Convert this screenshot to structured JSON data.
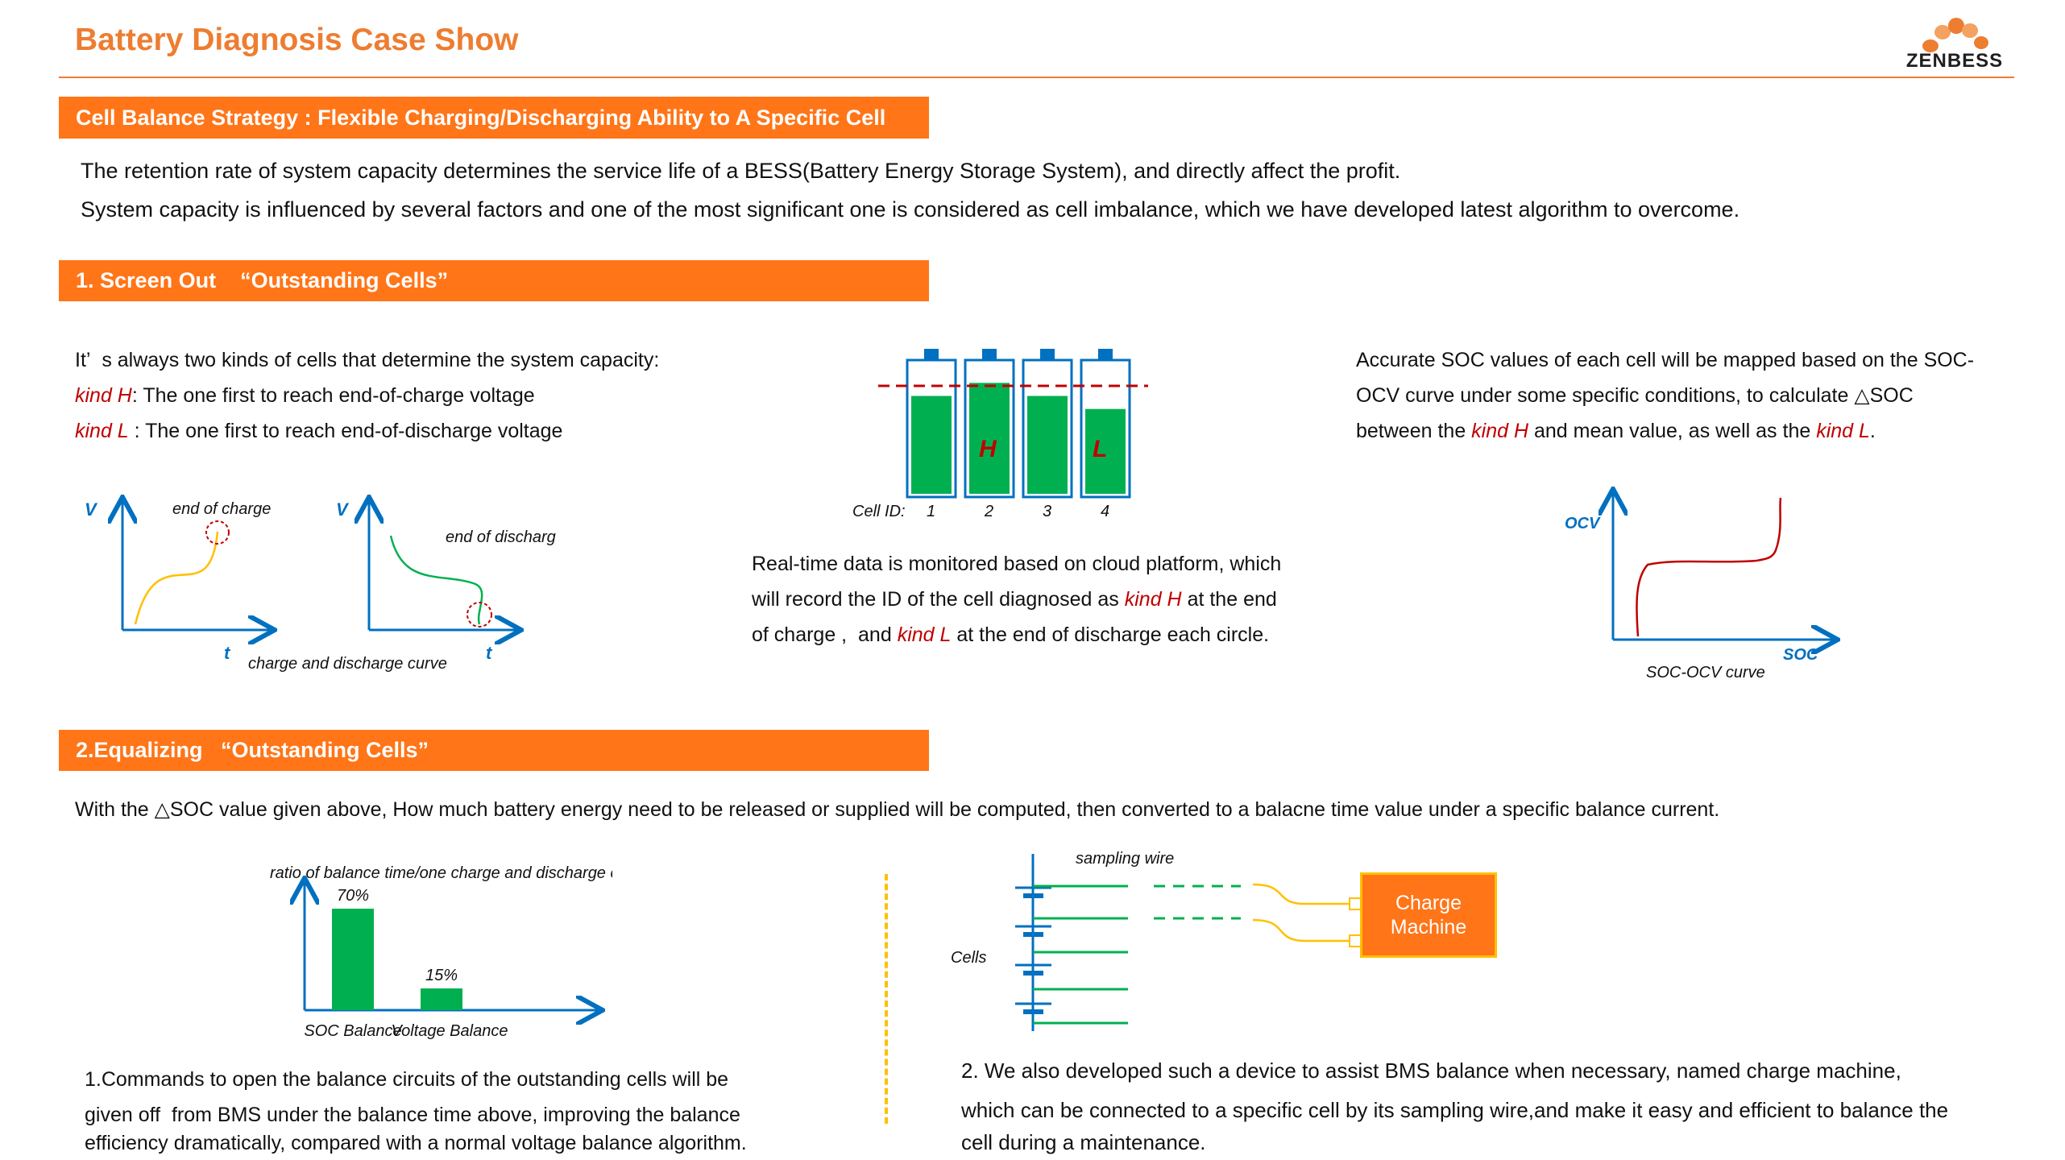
{
  "header": {
    "title": "Battery Diagnosis Case Show",
    "logo_text": "ZENBESS",
    "accent_color": "#ED7D31",
    "bar_color": "#FF7518"
  },
  "strategy": {
    "bar_label": "Cell Balance Strategy : Flexible Charging/Discharging Ability to A Specific Cell",
    "line1": "The retention rate of system capacity determines the service life of a BESS(Battery Energy Storage System), and directly affect the profit.",
    "line2": "System capacity is influenced by several factors and one of the most significant one is considered as cell imbalance, which we have developed latest algorithm to overcome."
  },
  "section1": {
    "bar_label": "1. Screen Out    “Outstanding Cells”",
    "left": {
      "intro": "It’  s always two kinds of cells that determine the system capacity:",
      "kind_h": "kind H",
      "kind_h_desc": ": The one first to reach end-of-charge voltage",
      "kind_l": "kind L",
      "kind_l_desc": " : The one first to reach end-of-discharge voltage"
    },
    "curves": {
      "v_label": "V",
      "t_label": "t",
      "end_of_charge": "end of charge",
      "end_of_discharge": "end of discharge",
      "caption": "charge and discharge curve"
    },
    "cells": {
      "cell_id_label": "Cell ID:",
      "ids": [
        "1",
        "2",
        "3",
        "4"
      ],
      "h_label": "H",
      "l_label": "L",
      "fill_levels": [
        0.75,
        0.85,
        0.75,
        0.65
      ]
    },
    "middle_text": {
      "l1_a": "Real-time data is monitored based on cloud platform, which",
      "l2_a": "will record the ID of the cell diagnosed as ",
      "l2_red": "kind H",
      "l2_b": " at the end",
      "l3_a": "of charge ,  and ",
      "l3_red": "kind L",
      "l3_b": " at the end of discharge each circle."
    },
    "right_text": {
      "l1": "Accurate SOC values of each cell will be mapped based on the SOC-",
      "l2": "OCV curve under some specific conditions, to calculate △SOC",
      "l3_a": "between the ",
      "l3_red1": "kind H",
      "l3_b": " and mean value, as well as the ",
      "l3_red2": "kind L",
      "l3_c": "."
    },
    "socv": {
      "y_label": "OCV",
      "x_label": "SOC",
      "caption": "SOC-OCV curve"
    }
  },
  "section2": {
    "bar_label": "2.Equalizing   “Outstanding Cells”",
    "intro": "With the △SOC value given above, How much battery energy need to be released or supplied will be computed, then converted to a balacne time value under a specific balance current.",
    "left_text": {
      "l1": "1.Commands to open the balance circuits of the outstanding cells will be",
      "l2": "given off  from BMS under the balance time above, improving the balance",
      "l3": "efficiency dramatically, compared with a normal voltage balance algorithm."
    },
    "right_text": {
      "l1": "2. We also developed such a device to assist BMS balance when necessary, named charge machine,",
      "l2": "which can be connected to a specific cell by its sampling wire,and make it easy and efficient to balance the",
      "l3": "cell during a maintenance."
    },
    "device": {
      "sampling_wire": "sampling wire",
      "cells_label": "Cells",
      "machine_line1": "Charge",
      "machine_line2": "Machine"
    }
  },
  "chart_data": {
    "type": "bar",
    "title": "ratio of balance time/one charge and discharge circle",
    "categories": [
      "SOC Balance",
      "Voltage Balance"
    ],
    "values": [
      70,
      15
    ],
    "value_labels": [
      "70%",
      "15%"
    ],
    "ylim": [
      0,
      100
    ],
    "color": "#00B050"
  }
}
